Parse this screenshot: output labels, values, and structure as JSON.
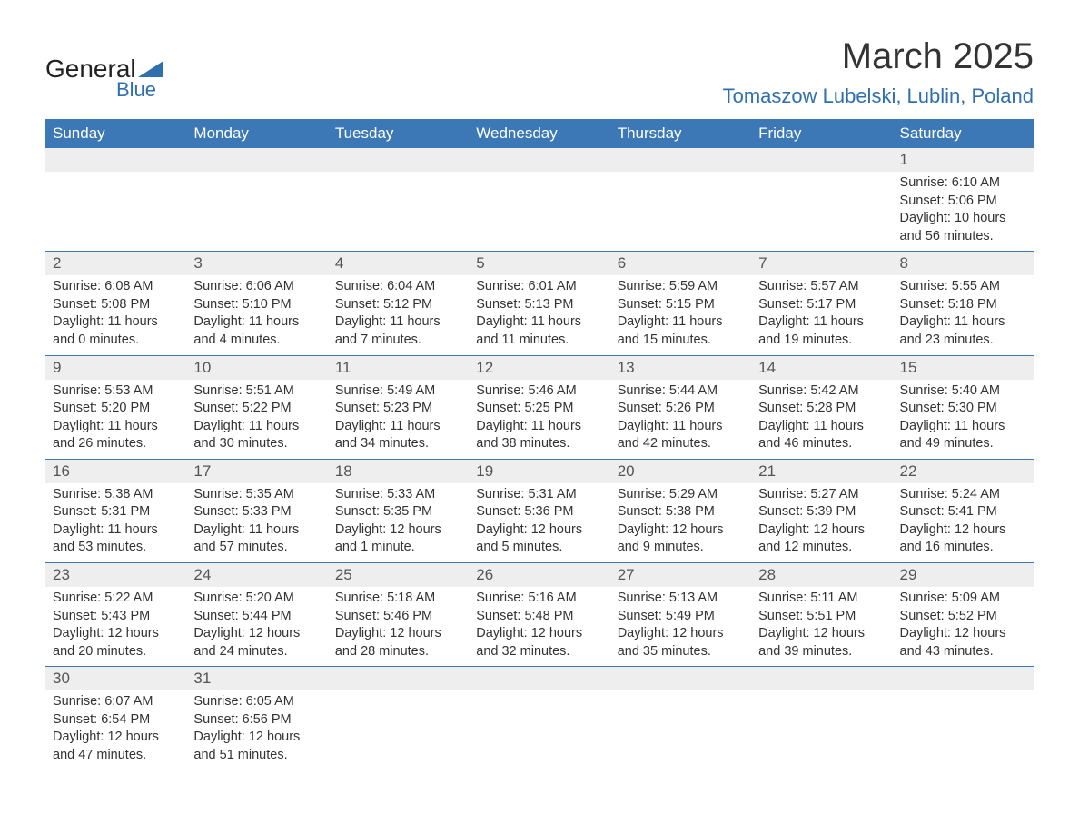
{
  "logo": {
    "general": "General",
    "blue": "Blue"
  },
  "title": "March 2025",
  "location": "Tomaszow Lubelski, Lublin, Poland",
  "colors": {
    "header_bg": "#3b78b5",
    "header_text": "#ffffff",
    "daynum_bg": "#eeeeee",
    "border": "#3b78b5",
    "accent": "#2f6fad",
    "text": "#333333"
  },
  "dayHeaders": [
    "Sunday",
    "Monday",
    "Tuesday",
    "Wednesday",
    "Thursday",
    "Friday",
    "Saturday"
  ],
  "weeks": [
    [
      null,
      null,
      null,
      null,
      null,
      null,
      {
        "n": "1",
        "sr": "Sunrise: 6:10 AM",
        "ss": "Sunset: 5:06 PM",
        "dl1": "Daylight: 10 hours",
        "dl2": "and 56 minutes."
      }
    ],
    [
      {
        "n": "2",
        "sr": "Sunrise: 6:08 AM",
        "ss": "Sunset: 5:08 PM",
        "dl1": "Daylight: 11 hours",
        "dl2": "and 0 minutes."
      },
      {
        "n": "3",
        "sr": "Sunrise: 6:06 AM",
        "ss": "Sunset: 5:10 PM",
        "dl1": "Daylight: 11 hours",
        "dl2": "and 4 minutes."
      },
      {
        "n": "4",
        "sr": "Sunrise: 6:04 AM",
        "ss": "Sunset: 5:12 PM",
        "dl1": "Daylight: 11 hours",
        "dl2": "and 7 minutes."
      },
      {
        "n": "5",
        "sr": "Sunrise: 6:01 AM",
        "ss": "Sunset: 5:13 PM",
        "dl1": "Daylight: 11 hours",
        "dl2": "and 11 minutes."
      },
      {
        "n": "6",
        "sr": "Sunrise: 5:59 AM",
        "ss": "Sunset: 5:15 PM",
        "dl1": "Daylight: 11 hours",
        "dl2": "and 15 minutes."
      },
      {
        "n": "7",
        "sr": "Sunrise: 5:57 AM",
        "ss": "Sunset: 5:17 PM",
        "dl1": "Daylight: 11 hours",
        "dl2": "and 19 minutes."
      },
      {
        "n": "8",
        "sr": "Sunrise: 5:55 AM",
        "ss": "Sunset: 5:18 PM",
        "dl1": "Daylight: 11 hours",
        "dl2": "and 23 minutes."
      }
    ],
    [
      {
        "n": "9",
        "sr": "Sunrise: 5:53 AM",
        "ss": "Sunset: 5:20 PM",
        "dl1": "Daylight: 11 hours",
        "dl2": "and 26 minutes."
      },
      {
        "n": "10",
        "sr": "Sunrise: 5:51 AM",
        "ss": "Sunset: 5:22 PM",
        "dl1": "Daylight: 11 hours",
        "dl2": "and 30 minutes."
      },
      {
        "n": "11",
        "sr": "Sunrise: 5:49 AM",
        "ss": "Sunset: 5:23 PM",
        "dl1": "Daylight: 11 hours",
        "dl2": "and 34 minutes."
      },
      {
        "n": "12",
        "sr": "Sunrise: 5:46 AM",
        "ss": "Sunset: 5:25 PM",
        "dl1": "Daylight: 11 hours",
        "dl2": "and 38 minutes."
      },
      {
        "n": "13",
        "sr": "Sunrise: 5:44 AM",
        "ss": "Sunset: 5:26 PM",
        "dl1": "Daylight: 11 hours",
        "dl2": "and 42 minutes."
      },
      {
        "n": "14",
        "sr": "Sunrise: 5:42 AM",
        "ss": "Sunset: 5:28 PM",
        "dl1": "Daylight: 11 hours",
        "dl2": "and 46 minutes."
      },
      {
        "n": "15",
        "sr": "Sunrise: 5:40 AM",
        "ss": "Sunset: 5:30 PM",
        "dl1": "Daylight: 11 hours",
        "dl2": "and 49 minutes."
      }
    ],
    [
      {
        "n": "16",
        "sr": "Sunrise: 5:38 AM",
        "ss": "Sunset: 5:31 PM",
        "dl1": "Daylight: 11 hours",
        "dl2": "and 53 minutes."
      },
      {
        "n": "17",
        "sr": "Sunrise: 5:35 AM",
        "ss": "Sunset: 5:33 PM",
        "dl1": "Daylight: 11 hours",
        "dl2": "and 57 minutes."
      },
      {
        "n": "18",
        "sr": "Sunrise: 5:33 AM",
        "ss": "Sunset: 5:35 PM",
        "dl1": "Daylight: 12 hours",
        "dl2": "and 1 minute."
      },
      {
        "n": "19",
        "sr": "Sunrise: 5:31 AM",
        "ss": "Sunset: 5:36 PM",
        "dl1": "Daylight: 12 hours",
        "dl2": "and 5 minutes."
      },
      {
        "n": "20",
        "sr": "Sunrise: 5:29 AM",
        "ss": "Sunset: 5:38 PM",
        "dl1": "Daylight: 12 hours",
        "dl2": "and 9 minutes."
      },
      {
        "n": "21",
        "sr": "Sunrise: 5:27 AM",
        "ss": "Sunset: 5:39 PM",
        "dl1": "Daylight: 12 hours",
        "dl2": "and 12 minutes."
      },
      {
        "n": "22",
        "sr": "Sunrise: 5:24 AM",
        "ss": "Sunset: 5:41 PM",
        "dl1": "Daylight: 12 hours",
        "dl2": "and 16 minutes."
      }
    ],
    [
      {
        "n": "23",
        "sr": "Sunrise: 5:22 AM",
        "ss": "Sunset: 5:43 PM",
        "dl1": "Daylight: 12 hours",
        "dl2": "and 20 minutes."
      },
      {
        "n": "24",
        "sr": "Sunrise: 5:20 AM",
        "ss": "Sunset: 5:44 PM",
        "dl1": "Daylight: 12 hours",
        "dl2": "and 24 minutes."
      },
      {
        "n": "25",
        "sr": "Sunrise: 5:18 AM",
        "ss": "Sunset: 5:46 PM",
        "dl1": "Daylight: 12 hours",
        "dl2": "and 28 minutes."
      },
      {
        "n": "26",
        "sr": "Sunrise: 5:16 AM",
        "ss": "Sunset: 5:48 PM",
        "dl1": "Daylight: 12 hours",
        "dl2": "and 32 minutes."
      },
      {
        "n": "27",
        "sr": "Sunrise: 5:13 AM",
        "ss": "Sunset: 5:49 PM",
        "dl1": "Daylight: 12 hours",
        "dl2": "and 35 minutes."
      },
      {
        "n": "28",
        "sr": "Sunrise: 5:11 AM",
        "ss": "Sunset: 5:51 PM",
        "dl1": "Daylight: 12 hours",
        "dl2": "and 39 minutes."
      },
      {
        "n": "29",
        "sr": "Sunrise: 5:09 AM",
        "ss": "Sunset: 5:52 PM",
        "dl1": "Daylight: 12 hours",
        "dl2": "and 43 minutes."
      }
    ],
    [
      {
        "n": "30",
        "sr": "Sunrise: 6:07 AM",
        "ss": "Sunset: 6:54 PM",
        "dl1": "Daylight: 12 hours",
        "dl2": "and 47 minutes."
      },
      {
        "n": "31",
        "sr": "Sunrise: 6:05 AM",
        "ss": "Sunset: 6:56 PM",
        "dl1": "Daylight: 12 hours",
        "dl2": "and 51 minutes."
      },
      null,
      null,
      null,
      null,
      null
    ]
  ]
}
